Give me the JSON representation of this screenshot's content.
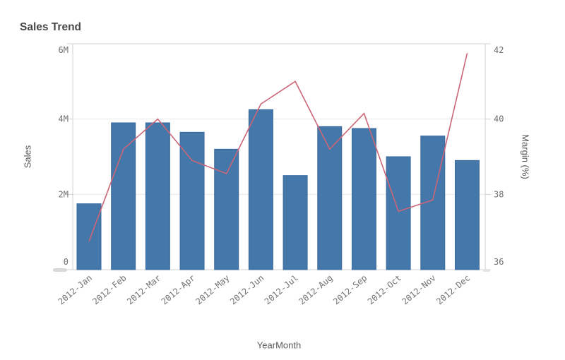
{
  "chart_data": {
    "type": "combo",
    "title": "Sales Trend",
    "xlabel": "YearMonth",
    "categories": [
      "2012-Jan",
      "2012-Feb",
      "2012-Mar",
      "2012-Apr",
      "2012-May",
      "2012-Jun",
      "2012-Jul",
      "2012-Aug",
      "2012-Sep",
      "2012-Oct",
      "2012-Nov",
      "2012-Dec"
    ],
    "series": [
      {
        "name": "Sales",
        "type": "bar",
        "axis": "left",
        "color": "#4477aa",
        "border_color": "#3a6a9e",
        "values_millions": [
          1.75,
          3.9,
          3.9,
          3.65,
          3.2,
          4.25,
          2.5,
          3.8,
          3.75,
          3.0,
          3.55,
          2.9
        ]
      },
      {
        "name": "Margin (%)",
        "type": "line",
        "axis": "right",
        "color": "#cc6677",
        "values_percent": [
          36.75,
          39.2,
          40.0,
          38.9,
          38.55,
          40.4,
          41.0,
          39.2,
          40.15,
          37.55,
          37.85,
          41.75
        ]
      }
    ],
    "left_axis": {
      "title": "Sales",
      "range_millions": [
        0,
        6
      ],
      "tick_values": [
        0,
        2,
        4,
        6
      ],
      "tick_labels": [
        "0",
        "2M",
        "4M",
        "6M"
      ]
    },
    "right_axis": {
      "title": "Margin (%)",
      "range_percent": [
        36,
        42
      ],
      "tick_values": [
        36,
        38,
        40,
        42
      ],
      "tick_labels": [
        "36",
        "38",
        "40",
        "42"
      ]
    },
    "grid": "horizontal-only",
    "legend": "none",
    "x_label_rotation_deg": -40
  },
  "colors": {
    "background": "#ffffff",
    "grid": "#e7e7e7",
    "axis_frame": "#d2d2d2",
    "tick_text": "#707070",
    "axis_title_text": "#5a5a5a",
    "title_text": "#484848",
    "scroll_thumb_left": "#d9d9d9",
    "scroll_thumb_right": "#e3e3e3"
  }
}
